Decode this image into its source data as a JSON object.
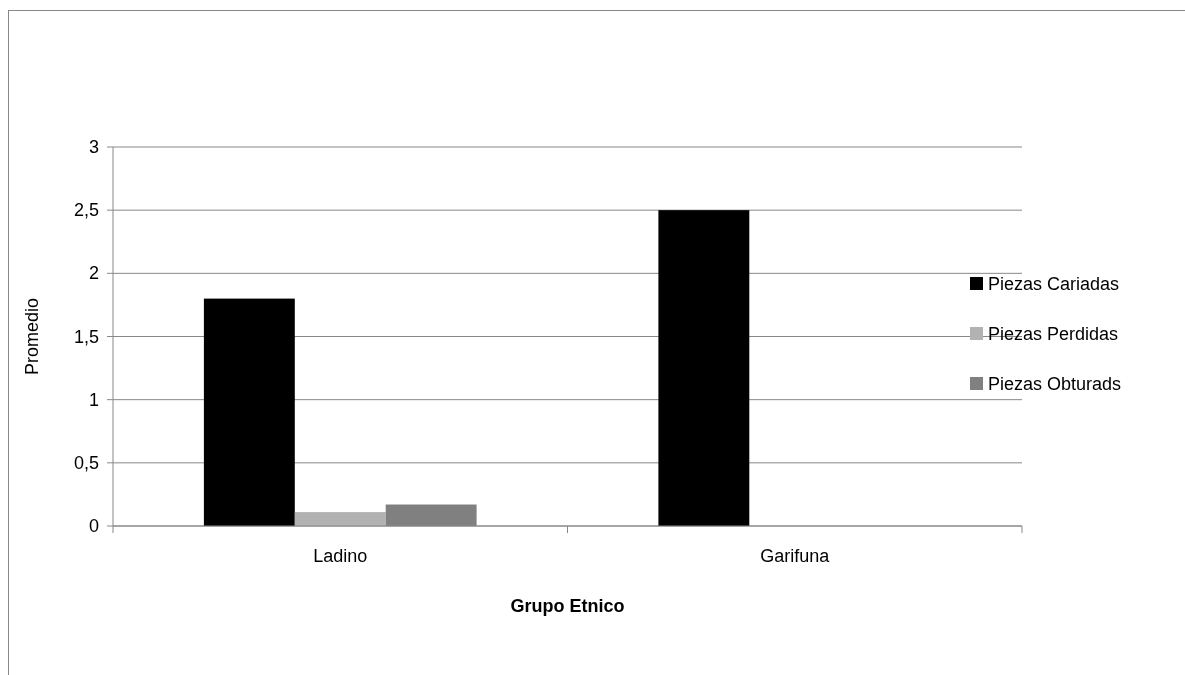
{
  "chart_data": {
    "type": "bar",
    "xlabel": "Grupo Etnico",
    "ylabel": "Promedio",
    "categories": [
      "Ladino",
      "Garifuna"
    ],
    "series": [
      {
        "name": "Piezas Cariadas",
        "color": "#000000",
        "values": [
          1.8,
          2.5
        ]
      },
      {
        "name": "Piezas Perdidas",
        "color": "#b2b2b2",
        "values": [
          0.11,
          0
        ]
      },
      {
        "name": "Piezas Obturads",
        "color": "#808080",
        "values": [
          0.17,
          0
        ]
      }
    ],
    "ylim": [
      0,
      3
    ],
    "yticks": [
      0,
      {
        "value": 0.5,
        "label": "0,5"
      },
      1,
      {
        "value": 1.5,
        "label": "1,5"
      },
      2,
      {
        "value": 2.5,
        "label": "2,5"
      },
      3
    ],
    "grid": "y",
    "legend": "right"
  }
}
